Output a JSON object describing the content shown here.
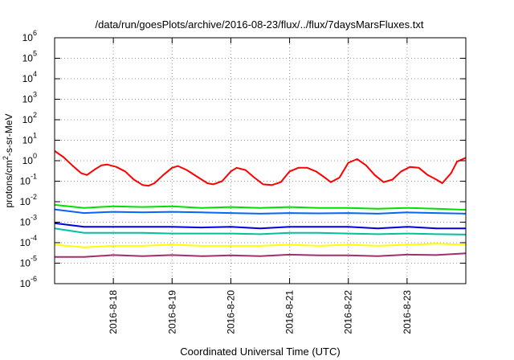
{
  "chart_data": {
    "type": "line",
    "title": "/data/run/goesPlots/archive/2016-08-23/flux/../flux/7daysMarsFluxes.txt",
    "xlabel": "Coordinated Universal Time (UTC)",
    "ylabel": {
      "pre": "protons/cm",
      "sup": "2",
      "post": "-s-sr-MeV"
    },
    "yscale": "log",
    "ylim": [
      1e-06,
      1000000.0
    ],
    "ytick_exponents": [
      -6,
      -5,
      -4,
      -3,
      -2,
      -1,
      0,
      1,
      2,
      3,
      4,
      5,
      6
    ],
    "xlim": [
      0,
      7.0
    ],
    "xticks": [
      {
        "x": 1,
        "label": "2016-8-18"
      },
      {
        "x": 2,
        "label": "2016-8-19"
      },
      {
        "x": 3,
        "label": "2016-8-20"
      },
      {
        "x": 4,
        "label": "2016-8-21"
      },
      {
        "x": 5,
        "label": "2016-8-22"
      },
      {
        "x": 6,
        "label": "2016-8-23"
      }
    ],
    "grid": true,
    "series": [
      {
        "color": "#ff0000",
        "x": [
          0,
          0.15,
          0.3,
          0.45,
          0.55,
          0.7,
          0.8,
          0.9,
          1.05,
          1.2,
          1.35,
          1.5,
          1.6,
          1.7,
          1.85,
          2.0,
          2.1,
          2.25,
          2.45,
          2.6,
          2.7,
          2.85,
          3.0,
          3.1,
          3.25,
          3.4,
          3.55,
          3.7,
          3.85,
          4.0,
          4.15,
          4.3,
          4.45,
          4.6,
          4.7,
          4.85,
          5.0,
          5.15,
          5.3,
          5.45,
          5.6,
          5.75,
          5.9,
          6.05,
          6.2,
          6.35,
          6.5,
          6.6,
          6.75,
          6.85,
          7.0
        ],
        "y": [
          3,
          1.5,
          0.6,
          0.25,
          0.2,
          0.4,
          0.6,
          0.65,
          0.5,
          0.3,
          0.12,
          0.065,
          0.06,
          0.08,
          0.2,
          0.45,
          0.55,
          0.35,
          0.15,
          0.08,
          0.07,
          0.1,
          0.3,
          0.45,
          0.35,
          0.15,
          0.07,
          0.065,
          0.09,
          0.3,
          0.45,
          0.45,
          0.3,
          0.15,
          0.09,
          0.15,
          0.8,
          1.2,
          0.6,
          0.2,
          0.09,
          0.12,
          0.3,
          0.5,
          0.45,
          0.2,
          0.12,
          0.08,
          0.25,
          0.9,
          1.4
        ]
      },
      {
        "color": "#00e000",
        "x": [
          0,
          0.5,
          1,
          1.5,
          2,
          2.5,
          3,
          3.5,
          4,
          4.5,
          5,
          5.5,
          6,
          6.5,
          7
        ],
        "y": [
          0.007,
          0.005,
          0.006,
          0.0055,
          0.006,
          0.005,
          0.0055,
          0.005,
          0.0055,
          0.005,
          0.005,
          0.0045,
          0.005,
          0.0045,
          0.004
        ]
      },
      {
        "color": "#0066ff",
        "x": [
          0,
          0.5,
          1,
          1.5,
          2,
          2.5,
          3,
          3.5,
          4,
          4.5,
          5,
          5.5,
          6,
          6.5,
          7
        ],
        "y": [
          0.0042,
          0.0028,
          0.0032,
          0.003,
          0.0032,
          0.003,
          0.0028,
          0.0026,
          0.0028,
          0.0027,
          0.0028,
          0.0026,
          0.003,
          0.0028,
          0.0026
        ]
      },
      {
        "color": "#0000dd",
        "x": [
          0,
          0.5,
          1,
          1.5,
          2,
          2.5,
          3,
          3.5,
          4,
          4.5,
          5,
          5.5,
          6,
          6.5,
          7
        ],
        "y": [
          0.0009,
          0.0006,
          0.0006,
          0.0006,
          0.0006,
          0.00055,
          0.0006,
          0.0005,
          0.0006,
          0.0006,
          0.0006,
          0.0005,
          0.0006,
          0.0005,
          0.0005
        ]
      },
      {
        "color": "#00c0a0",
        "x": [
          0,
          0.5,
          1,
          1.5,
          2,
          2.5,
          3,
          3.5,
          4,
          4.5,
          5,
          5.5,
          6,
          6.5,
          7
        ],
        "y": [
          0.0005,
          0.0003,
          0.0003,
          0.0003,
          0.00028,
          0.00028,
          0.00028,
          0.00026,
          0.0003,
          0.0003,
          0.00028,
          0.00026,
          0.00028,
          0.00026,
          0.00025
        ]
      },
      {
        "color": "#ffff00",
        "x": [
          0,
          0.5,
          1,
          1.5,
          2,
          2.5,
          3,
          3.5,
          4,
          4.5,
          5,
          5.5,
          6,
          6.5,
          7
        ],
        "y": [
          8e-05,
          6e-05,
          7e-05,
          7e-05,
          8e-05,
          7e-05,
          7e-05,
          7e-05,
          8e-05,
          7e-05,
          8e-05,
          7e-05,
          8e-05,
          9e-05,
          8e-05
        ]
      },
      {
        "color": "#a0306a",
        "x": [
          0,
          0.5,
          1,
          1.5,
          2,
          2.5,
          3,
          3.5,
          4,
          4.5,
          5,
          5.5,
          6,
          6.5,
          7
        ],
        "y": [
          2e-05,
          2e-05,
          2.5e-05,
          2.2e-05,
          2.5e-05,
          2.2e-05,
          2.4e-05,
          2.2e-05,
          2.6e-05,
          2.4e-05,
          2.4e-05,
          2.2e-05,
          2.6e-05,
          2.5e-05,
          3e-05
        ]
      }
    ]
  }
}
